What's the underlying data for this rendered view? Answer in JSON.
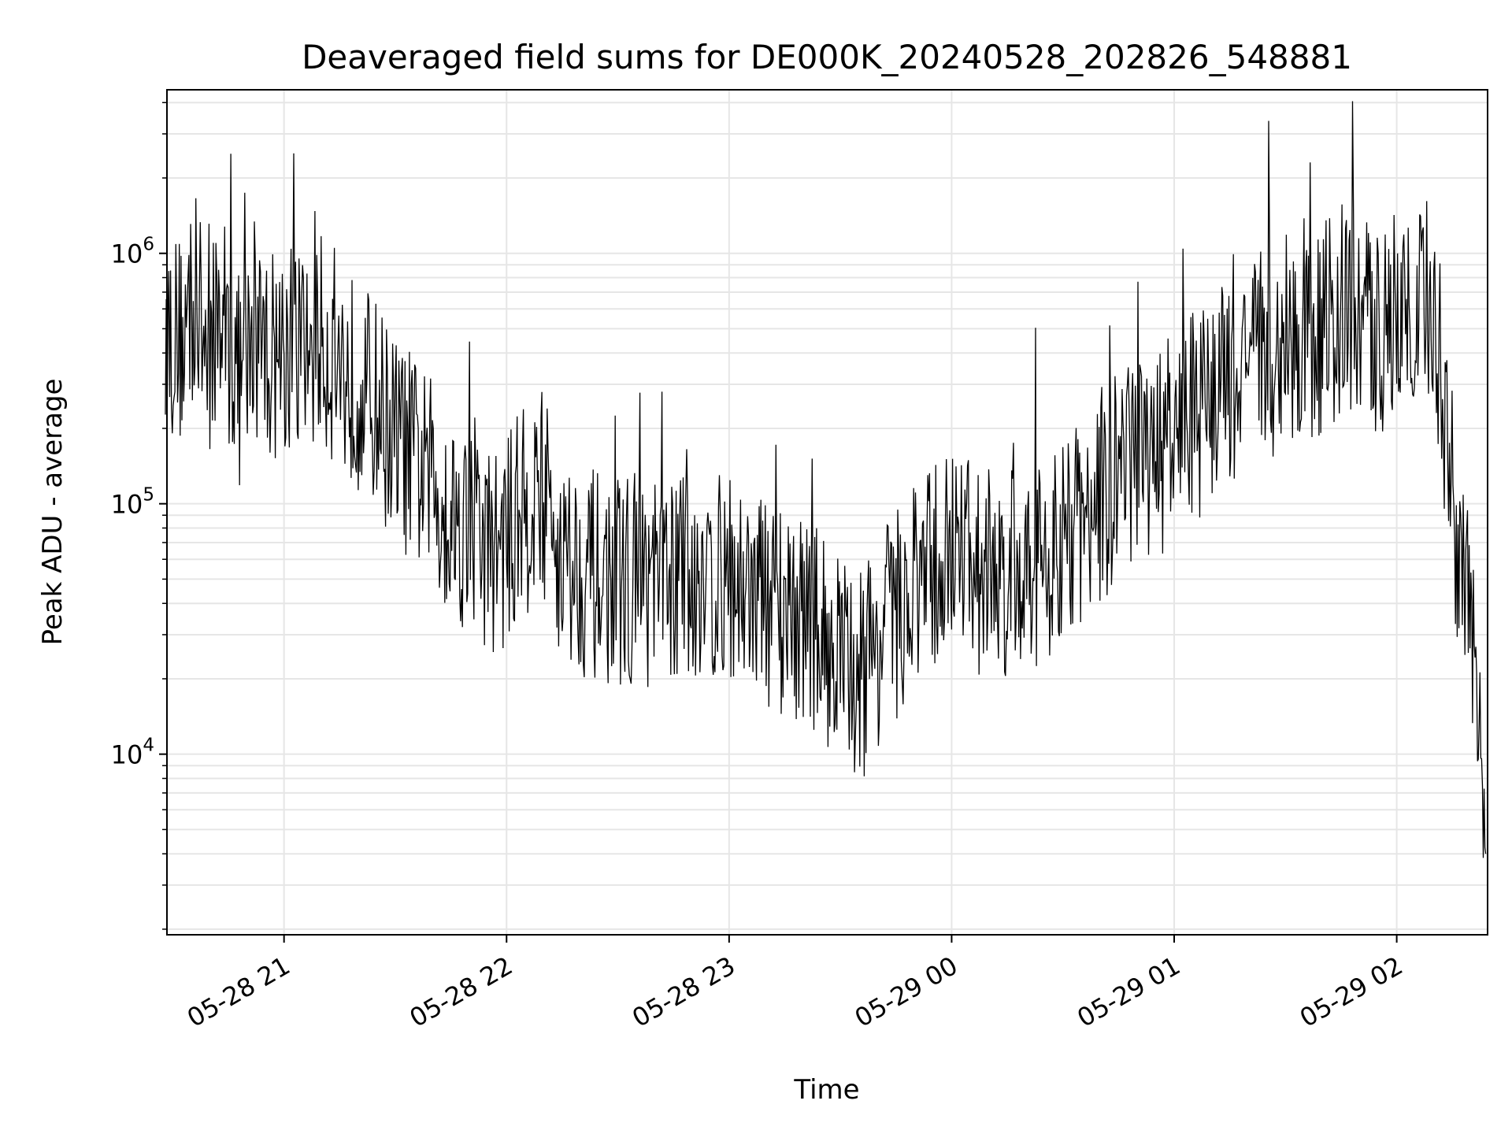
{
  "chart_data": {
    "type": "line",
    "title": "Deaveraged field sums for DE000K_20240528_202826_548881",
    "xlabel": "Time",
    "ylabel": "Peak ADU - average",
    "yscale": "log",
    "grid": true,
    "line_color": "#000000",
    "grid_color": "#e6e6e6",
    "xlim": [
      "2024-05-28 20:28:26",
      "2024-05-29 02:24:30"
    ],
    "ylim": [
      1900,
      4500000
    ],
    "x_ticks": [
      {
        "value": "2024-05-28 21:00",
        "label": "05-28 21"
      },
      {
        "value": "2024-05-28 22:00",
        "label": "05-28 22"
      },
      {
        "value": "2024-05-28 23:00",
        "label": "05-28 23"
      },
      {
        "value": "2024-05-29 00:00",
        "label": "05-29 00"
      },
      {
        "value": "2024-05-29 01:00",
        "label": "05-29 01"
      },
      {
        "value": "2024-05-29 02:00",
        "label": "05-29 02"
      }
    ],
    "y_ticks": [
      {
        "value": 10000,
        "base": "10",
        "exp": "4"
      },
      {
        "value": 100000,
        "base": "10",
        "exp": "5"
      },
      {
        "value": 1000000,
        "base": "10",
        "exp": "6"
      }
    ],
    "series": [
      {
        "x": [
          "2024-05-28 20:28",
          "2024-05-28 20:32",
          "2024-05-28 20:36",
          "2024-05-28 20:40",
          "2024-05-28 20:44",
          "2024-05-28 20:48",
          "2024-05-28 20:52",
          "2024-05-28 20:56",
          "2024-05-28 21:00",
          "2024-05-28 21:05",
          "2024-05-28 21:10",
          "2024-05-28 21:15",
          "2024-05-28 21:20",
          "2024-05-28 21:25",
          "2024-05-28 21:30",
          "2024-05-28 21:35",
          "2024-05-28 21:40",
          "2024-05-28 21:45",
          "2024-05-28 21:50",
          "2024-05-28 21:55",
          "2024-05-28 22:00",
          "2024-05-28 22:05",
          "2024-05-28 22:10",
          "2024-05-28 22:15",
          "2024-05-28 22:20",
          "2024-05-28 22:25",
          "2024-05-28 22:30",
          "2024-05-28 22:35",
          "2024-05-28 22:40",
          "2024-05-28 22:45",
          "2024-05-28 22:50",
          "2024-05-28 22:55",
          "2024-05-28 23:00",
          "2024-05-28 23:05",
          "2024-05-28 23:10",
          "2024-05-28 23:15",
          "2024-05-28 23:20",
          "2024-05-28 23:25",
          "2024-05-28 23:30",
          "2024-05-28 23:35",
          "2024-05-28 23:40",
          "2024-05-28 23:45",
          "2024-05-28 23:50",
          "2024-05-28 23:55",
          "2024-05-29 00:00",
          "2024-05-29 00:05",
          "2024-05-29 00:10",
          "2024-05-29 00:15",
          "2024-05-29 00:20",
          "2024-05-29 00:25",
          "2024-05-29 00:30",
          "2024-05-29 00:35",
          "2024-05-29 00:40",
          "2024-05-29 00:45",
          "2024-05-29 00:50",
          "2024-05-29 00:55",
          "2024-05-29 01:00",
          "2024-05-29 01:05",
          "2024-05-29 01:10",
          "2024-05-29 01:15",
          "2024-05-29 01:20",
          "2024-05-29 01:25",
          "2024-05-29 01:30",
          "2024-05-29 01:35",
          "2024-05-29 01:40",
          "2024-05-29 01:45",
          "2024-05-29 01:50",
          "2024-05-29 01:55",
          "2024-05-29 02:00",
          "2024-05-29 02:05",
          "2024-05-29 02:10",
          "2024-05-29 02:14",
          "2024-05-29 02:17",
          "2024-05-29 02:20",
          "2024-05-29 02:22",
          "2024-05-29 02:24"
        ],
        "y": [
          500000,
          450000,
          600000,
          400000,
          550000,
          300000,
          450000,
          400000,
          420000,
          380000,
          450000,
          350000,
          300000,
          250000,
          180000,
          150000,
          120000,
          90000,
          80000,
          65000,
          70000,
          95000,
          110000,
          60000,
          55000,
          50000,
          48000,
          52000,
          45000,
          50000,
          55000,
          48000,
          50000,
          45000,
          40000,
          38000,
          35000,
          30000,
          25000,
          22000,
          28000,
          35000,
          45000,
          55000,
          60000,
          58000,
          55000,
          52000,
          55000,
          60000,
          70000,
          80000,
          100000,
          130000,
          150000,
          160000,
          180000,
          220000,
          260000,
          300000,
          350000,
          400000,
          420000,
          450000,
          500000,
          600000,
          550000,
          480000,
          600000,
          700000,
          650000,
          150000,
          60000,
          30000,
          12000,
          4000
        ]
      }
    ]
  }
}
